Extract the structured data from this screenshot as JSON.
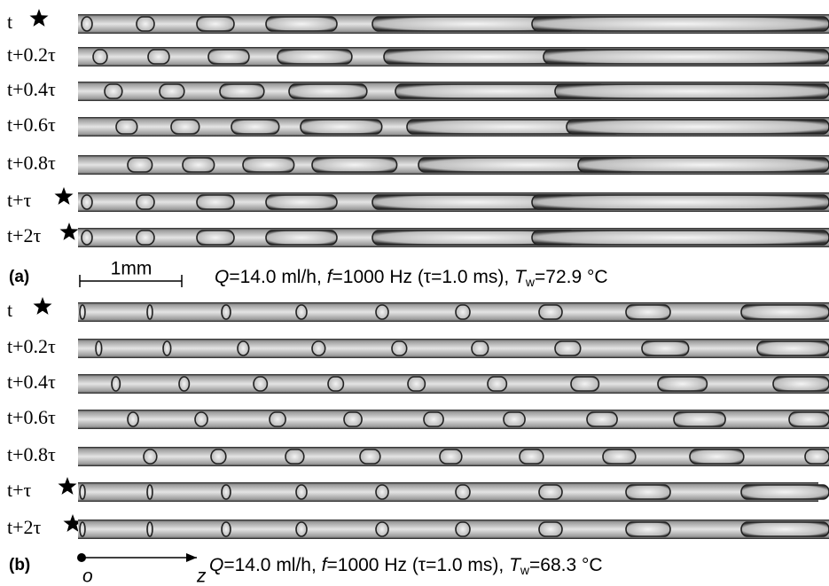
{
  "panels": [
    {
      "label": "(a)",
      "rows": [
        {
          "label": "t",
          "star": true
        },
        {
          "label": "t+0.2τ",
          "star": false
        },
        {
          "label": "t+0.4τ",
          "star": false
        },
        {
          "label": "t+0.6τ",
          "star": false
        },
        {
          "label": "t+0.8τ",
          "star": false
        },
        {
          "label": "t+τ",
          "star": true
        },
        {
          "label": "t+2τ",
          "star": true
        }
      ],
      "scale_bar": "1mm",
      "caption": [
        "Q",
        "=14.0 ml/h, ",
        "f",
        "=1000 Hz (τ=1.0 ms), ",
        "T",
        "w",
        "=72.9 °C"
      ]
    },
    {
      "label": "(b)",
      "rows": [
        {
          "label": "t",
          "star": true
        },
        {
          "label": "t+0.2τ",
          "star": false
        },
        {
          "label": "t+0.4τ",
          "star": false
        },
        {
          "label": "t+0.6τ",
          "star": false
        },
        {
          "label": "t+0.8τ",
          "star": false
        },
        {
          "label": "t+τ",
          "star": true
        },
        {
          "label": "t+2τ",
          "star": true
        }
      ],
      "axis": {
        "origin": "o",
        "direction": "z"
      },
      "caption": [
        "Q",
        "=14.0 ml/h, ",
        "f",
        "=1000 Hz (τ=1.0 ms), ",
        "T",
        "w",
        "=68.3 °C"
      ]
    }
  ]
}
